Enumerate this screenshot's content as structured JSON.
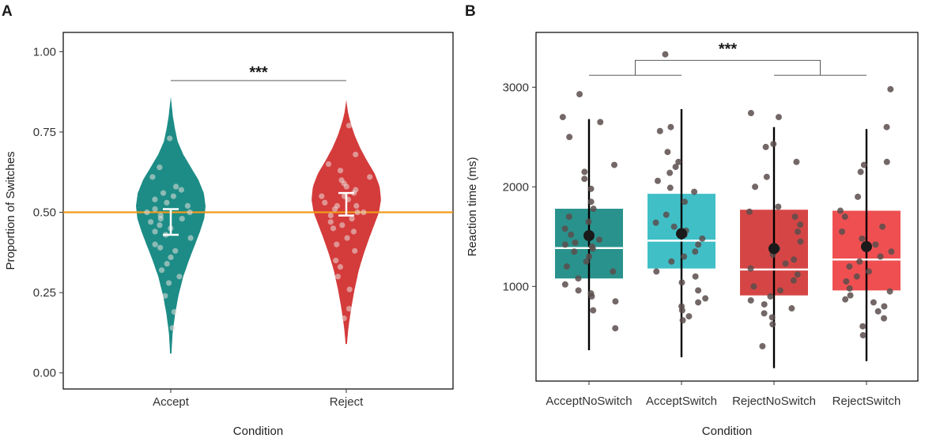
{
  "colors": {
    "accept": "#1d8c86",
    "accept_switch": "#36bcc4",
    "reject": "#d43b3b",
    "reject_switch": "#ee4648",
    "reference_line": "#f19a1c",
    "points_a": "#e8e0dd",
    "points_b": "#5a4e4c"
  },
  "chart_data": [
    {
      "panel": "A",
      "type": "violin",
      "xlabel": "Condition",
      "ylabel": "Proportion of Switches",
      "ylim": [
        -0.05,
        1.06
      ],
      "yticks": [
        0.0,
        0.25,
        0.5,
        0.75,
        1.0
      ],
      "ytick_labels": [
        "0.00",
        "0.25",
        "0.50",
        "0.75",
        "1.00"
      ],
      "categories": [
        "Accept",
        "Reject"
      ],
      "reference_line": 0.5,
      "significance": {
        "label": "***",
        "y": 0.91,
        "between": [
          0,
          1
        ]
      },
      "series": [
        {
          "name": "Accept",
          "range": [
            0.06,
            0.86
          ],
          "density_y": [
            0.06,
            0.12,
            0.18,
            0.24,
            0.3,
            0.35,
            0.4,
            0.44,
            0.48,
            0.52,
            0.56,
            0.6,
            0.64,
            0.68,
            0.72,
            0.76,
            0.8,
            0.83,
            0.86
          ],
          "density_w": [
            0.02,
            0.05,
            0.12,
            0.22,
            0.36,
            0.52,
            0.7,
            0.84,
            0.96,
            1.0,
            0.95,
            0.8,
            0.58,
            0.36,
            0.2,
            0.12,
            0.06,
            0.03,
            0.0
          ],
          "mean": 0.47,
          "ci": [
            0.43,
            0.51
          ],
          "points": [
            0.14,
            0.19,
            0.24,
            0.28,
            0.3,
            0.32,
            0.34,
            0.36,
            0.38,
            0.39,
            0.4,
            0.42,
            0.43,
            0.44,
            0.45,
            0.46,
            0.47,
            0.48,
            0.48,
            0.49,
            0.5,
            0.5,
            0.51,
            0.52,
            0.53,
            0.54,
            0.55,
            0.56,
            0.57,
            0.58,
            0.61,
            0.64,
            0.73
          ]
        },
        {
          "name": "Reject",
          "range": [
            0.09,
            0.85
          ],
          "density_y": [
            0.09,
            0.14,
            0.2,
            0.26,
            0.32,
            0.37,
            0.42,
            0.46,
            0.5,
            0.54,
            0.58,
            0.62,
            0.66,
            0.7,
            0.74,
            0.78,
            0.81,
            0.85
          ],
          "density_w": [
            0.02,
            0.06,
            0.14,
            0.24,
            0.36,
            0.5,
            0.66,
            0.8,
            0.94,
            1.0,
            0.96,
            0.82,
            0.6,
            0.4,
            0.24,
            0.12,
            0.05,
            0.0
          ],
          "mean": 0.52,
          "ci": [
            0.49,
            0.56
          ],
          "points": [
            0.17,
            0.2,
            0.26,
            0.3,
            0.33,
            0.35,
            0.38,
            0.4,
            0.42,
            0.44,
            0.45,
            0.46,
            0.47,
            0.48,
            0.49,
            0.5,
            0.5,
            0.51,
            0.52,
            0.52,
            0.53,
            0.54,
            0.55,
            0.55,
            0.56,
            0.57,
            0.58,
            0.59,
            0.6,
            0.61,
            0.63,
            0.65,
            0.68,
            0.77
          ]
        }
      ]
    },
    {
      "panel": "B",
      "type": "box",
      "xlabel": "Condition",
      "ylabel": "Reaction time (ms)",
      "ylim": [
        50,
        3550
      ],
      "yticks": [
        1000,
        2000,
        3000
      ],
      "ytick_labels": [
        "1000",
        "2000",
        "3000"
      ],
      "categories": [
        "AcceptNoSwitch",
        "AcceptSwitch",
        "RejectNoSwitch",
        "RejectSwitch"
      ],
      "significance": {
        "label": "***",
        "y": 3270,
        "groups": [
          [
            0,
            1
          ],
          [
            2,
            3
          ]
        ],
        "arm_y": 3120
      },
      "series": [
        {
          "name": "AcceptNoSwitch",
          "q1": 1080,
          "median": 1385,
          "q3": 1780,
          "mean": 1510,
          "whisker": [
            360,
            2680
          ],
          "points": [
            2930,
            2700,
            2650,
            2500,
            2220,
            2150,
            2080,
            1980,
            1850,
            1780,
            1700,
            1650,
            1580,
            1520,
            1470,
            1440,
            1420,
            1400,
            1380,
            1350,
            1300,
            1250,
            1200,
            1150,
            1080,
            1020,
            960,
            930,
            900,
            850,
            760,
            580
          ]
        },
        {
          "name": "AcceptSwitch",
          "q1": 1180,
          "median": 1460,
          "q3": 1930,
          "mean": 1530,
          "whisker": [
            290,
            2780
          ],
          "points": [
            3330,
            2600,
            2560,
            2350,
            2250,
            2200,
            2140,
            2060,
            1990,
            1950,
            1850,
            1720,
            1640,
            1600,
            1560,
            1520,
            1480,
            1420,
            1350,
            1300,
            1250,
            1150,
            1100,
            1040,
            960,
            880,
            840,
            800,
            760,
            700,
            660
          ]
        },
        {
          "name": "RejectNoSwitch",
          "q1": 910,
          "median": 1170,
          "q3": 1770,
          "mean": 1380,
          "whisker": [
            180,
            2600
          ],
          "points": [
            2740,
            2700,
            2430,
            2400,
            2250,
            2100,
            2000,
            1800,
            1750,
            1700,
            1620,
            1550,
            1450,
            1380,
            1320,
            1270,
            1230,
            1180,
            1120,
            1060,
            1000,
            960,
            900,
            860,
            820,
            780,
            730,
            690,
            620,
            400
          ]
        },
        {
          "name": "RejectSwitch",
          "q1": 960,
          "median": 1270,
          "q3": 1760,
          "mean": 1400,
          "whisker": [
            250,
            2580
          ],
          "points": [
            2980,
            2600,
            2250,
            2220,
            2150,
            1900,
            1760,
            1700,
            1600,
            1550,
            1480,
            1420,
            1350,
            1300,
            1250,
            1200,
            1150,
            1100,
            1050,
            980,
            950,
            910,
            870,
            840,
            800,
            750,
            680,
            600,
            510
          ]
        }
      ]
    }
  ]
}
